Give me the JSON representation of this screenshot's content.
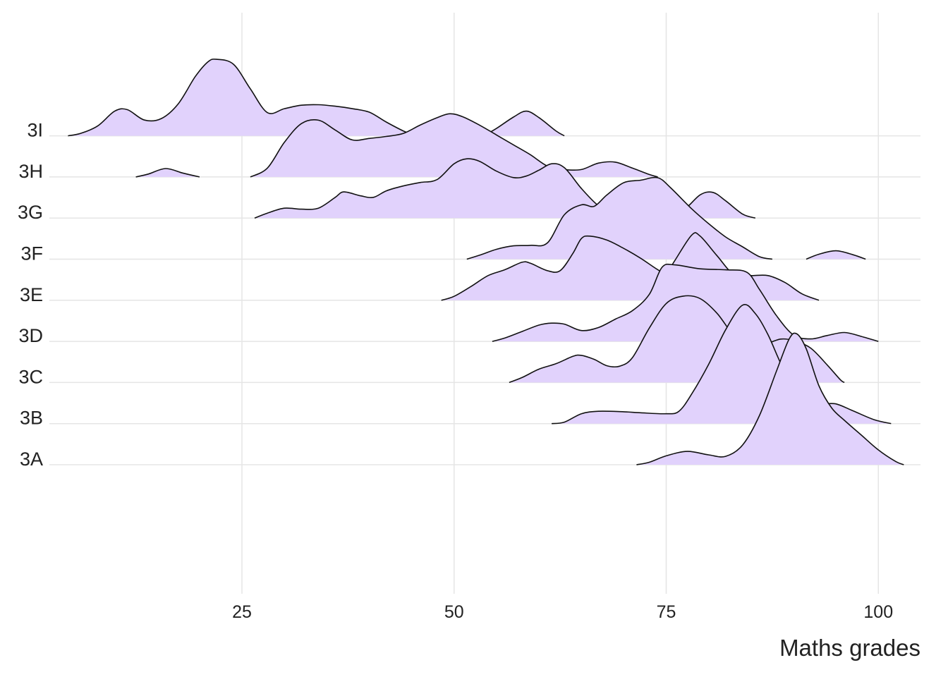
{
  "chart_data": {
    "type": "ridgeline",
    "xlabel": "Maths grades",
    "ylabel": "",
    "xlim": [
      2.5,
      103.5
    ],
    "xticks": [
      25,
      50,
      75,
      100
    ],
    "fill_color": "#e1d2fc",
    "line_color": "#111111",
    "grid": true,
    "categories": [
      "3A",
      "3B",
      "3C",
      "3D",
      "3E",
      "3F",
      "3G",
      "3H",
      "3I"
    ],
    "series": [
      {
        "category": "3A",
        "segments": [
          [
            [
              71.5,
              0
            ],
            [
              73,
              0.05
            ],
            [
              75,
              0.18
            ],
            [
              77.5,
              0.27
            ],
            [
              80,
              0.2
            ],
            [
              82,
              0.17
            ],
            [
              84,
              0.4
            ],
            [
              86,
              1.0
            ],
            [
              88,
              1.9
            ],
            [
              89.5,
              2.55
            ],
            [
              90.4,
              2.65
            ],
            [
              91.5,
              2.35
            ],
            [
              93,
              1.6
            ],
            [
              94.5,
              1.15
            ],
            [
              96,
              0.9
            ],
            [
              98,
              0.6
            ],
            [
              100,
              0.3
            ],
            [
              102,
              0.07
            ],
            [
              103,
              0
            ]
          ]
        ]
      },
      {
        "category": "3B",
        "segments": [
          [
            [
              61.5,
              0
            ],
            [
              63,
              0.03
            ],
            [
              65,
              0.2
            ],
            [
              67,
              0.25
            ],
            [
              70,
              0.24
            ],
            [
              72,
              0.22
            ],
            [
              75,
              0.2
            ],
            [
              76.5,
              0.25
            ],
            [
              78,
              0.6
            ],
            [
              80,
              1.2
            ],
            [
              82,
              1.9
            ],
            [
              84,
              2.4
            ],
            [
              85.5,
              2.23
            ],
            [
              87,
              1.8
            ],
            [
              89,
              1.05
            ],
            [
              91,
              0.65
            ],
            [
              93,
              0.42
            ],
            [
              95,
              0.4
            ],
            [
              97,
              0.26
            ],
            [
              99.5,
              0.08
            ],
            [
              101.5,
              0
            ]
          ]
        ]
      },
      {
        "category": "3C",
        "segments": [
          [
            [
              56.5,
              0
            ],
            [
              58,
              0.1
            ],
            [
              60,
              0.27
            ],
            [
              62,
              0.38
            ],
            [
              64,
              0.53
            ],
            [
              65,
              0.55
            ],
            [
              66.5,
              0.47
            ],
            [
              68,
              0.34
            ],
            [
              69.5,
              0.33
            ],
            [
              71,
              0.5
            ],
            [
              73,
              1.1
            ],
            [
              75,
              1.6
            ],
            [
              77,
              1.75
            ],
            [
              79,
              1.7
            ],
            [
              81,
              1.4
            ],
            [
              83,
              0.95
            ],
            [
              85,
              0.75
            ],
            [
              87,
              0.8
            ],
            [
              88.5,
              0.88
            ],
            [
              90,
              0.85
            ],
            [
              92,
              0.7
            ],
            [
              94,
              0.35
            ],
            [
              95.5,
              0.06
            ],
            [
              96,
              0
            ]
          ]
        ]
      },
      {
        "category": "3D",
        "segments": [
          [
            [
              54.5,
              0
            ],
            [
              56,
              0.07
            ],
            [
              58,
              0.2
            ],
            [
              60,
              0.33
            ],
            [
              61.5,
              0.37
            ],
            [
              63,
              0.35
            ],
            [
              65,
              0.22
            ],
            [
              67,
              0.28
            ],
            [
              69,
              0.45
            ],
            [
              71,
              0.62
            ],
            [
              73,
              0.95
            ],
            [
              74.5,
              1.5
            ],
            [
              76,
              1.55
            ],
            [
              79,
              1.47
            ],
            [
              82,
              1.45
            ],
            [
              84.5,
              1.4
            ],
            [
              86,
              1.05
            ],
            [
              88,
              0.52
            ],
            [
              90,
              0.13
            ],
            [
              92,
              0.05
            ],
            [
              94,
              0.12
            ],
            [
              96,
              0.18
            ],
            [
              98,
              0.1
            ],
            [
              100,
              0
            ]
          ]
        ]
      },
      {
        "category": "3E",
        "segments": [
          [
            [
              48.5,
              0
            ],
            [
              50,
              0.08
            ],
            [
              52,
              0.28
            ],
            [
              54,
              0.5
            ],
            [
              56,
              0.62
            ],
            [
              58,
              0.77
            ],
            [
              59,
              0.75
            ],
            [
              61,
              0.6
            ],
            [
              62.5,
              0.6
            ],
            [
              64,
              0.95
            ],
            [
              65,
              1.25
            ],
            [
              66,
              1.3
            ],
            [
              68,
              1.22
            ],
            [
              70,
              1.05
            ],
            [
              72,
              0.85
            ],
            [
              74,
              0.62
            ],
            [
              75,
              0.55
            ],
            [
              76,
              0.8
            ],
            [
              78,
              1.32
            ],
            [
              79,
              1.3
            ],
            [
              81,
              0.9
            ],
            [
              83,
              0.52
            ],
            [
              85,
              0.5
            ],
            [
              87,
              0.5
            ],
            [
              89,
              0.36
            ],
            [
              91,
              0.13
            ],
            [
              93,
              0
            ]
          ]
        ]
      },
      {
        "category": "3F",
        "segments": [
          [
            [
              51.5,
              0
            ],
            [
              53,
              0.08
            ],
            [
              55,
              0.2
            ],
            [
              57,
              0.27
            ],
            [
              59,
              0.28
            ],
            [
              61,
              0.33
            ],
            [
              63,
              0.9
            ],
            [
              65,
              1.1
            ],
            [
              66.5,
              1.07
            ],
            [
              68,
              1.3
            ],
            [
              70,
              1.55
            ],
            [
              72,
              1.6
            ],
            [
              74,
              1.65
            ],
            [
              75.5,
              1.45
            ],
            [
              78,
              1.02
            ],
            [
              80,
              0.72
            ],
            [
              82,
              0.45
            ],
            [
              84,
              0.25
            ],
            [
              86,
              0.05
            ],
            [
              87.5,
              0
            ]
          ],
          [
            [
              91.5,
              0
            ],
            [
              93,
              0.1
            ],
            [
              95,
              0.17
            ],
            [
              97,
              0.09
            ],
            [
              98.5,
              0
            ]
          ]
        ]
      },
      {
        "category": "3G",
        "segments": [
          [
            [
              26.5,
              0
            ],
            [
              28,
              0.1
            ],
            [
              30,
              0.2
            ],
            [
              32,
              0.18
            ],
            [
              34,
              0.2
            ],
            [
              36,
              0.42
            ],
            [
              37,
              0.53
            ],
            [
              39,
              0.45
            ],
            [
              40.5,
              0.42
            ],
            [
              42,
              0.55
            ],
            [
              44,
              0.65
            ],
            [
              46,
              0.72
            ],
            [
              48,
              0.78
            ],
            [
              50,
              1.1
            ],
            [
              51.5,
              1.2
            ],
            [
              53,
              1.15
            ],
            [
              55,
              0.95
            ],
            [
              57,
              0.82
            ],
            [
              58.5,
              0.85
            ],
            [
              60,
              0.97
            ],
            [
              61.5,
              1.1
            ],
            [
              63,
              1.02
            ],
            [
              65,
              0.6
            ],
            [
              67,
              0.25
            ],
            [
              69,
              0.05
            ],
            [
              71,
              0.12
            ],
            [
              73,
              0.22
            ],
            [
              75,
              0.2
            ],
            [
              77,
              0.17
            ],
            [
              79,
              0.47
            ],
            [
              80.5,
              0.52
            ],
            [
              82,
              0.35
            ],
            [
              84,
              0.08
            ],
            [
              85.5,
              0
            ]
          ]
        ]
      },
      {
        "category": "3H",
        "segments": [
          [
            [
              12.5,
              0
            ],
            [
              14,
              0.06
            ],
            [
              16,
              0.17
            ],
            [
              18,
              0.08
            ],
            [
              20,
              0
            ]
          ],
          [
            [
              26,
              0
            ],
            [
              28,
              0.18
            ],
            [
              30,
              0.7
            ],
            [
              32,
              1.08
            ],
            [
              34,
              1.15
            ],
            [
              36,
              0.95
            ],
            [
              38,
              0.75
            ],
            [
              40,
              0.78
            ],
            [
              42,
              0.82
            ],
            [
              44,
              0.88
            ],
            [
              46,
              1.05
            ],
            [
              48,
              1.2
            ],
            [
              49.5,
              1.28
            ],
            [
              51,
              1.22
            ],
            [
              53,
              1.05
            ],
            [
              55,
              0.85
            ],
            [
              57,
              0.65
            ],
            [
              59,
              0.45
            ],
            [
              61,
              0.22
            ],
            [
              63,
              0.15
            ],
            [
              65,
              0.15
            ],
            [
              67,
              0.28
            ],
            [
              69,
              0.3
            ],
            [
              71,
              0.18
            ],
            [
              73,
              0.05
            ],
            [
              74,
              0
            ]
          ]
        ]
      },
      {
        "category": "3I",
        "segments": [
          [
            [
              4.5,
              0
            ],
            [
              6,
              0.05
            ],
            [
              8,
              0.2
            ],
            [
              10,
              0.5
            ],
            [
              11.5,
              0.53
            ],
            [
              13.5,
              0.32
            ],
            [
              15.5,
              0.35
            ],
            [
              17.5,
              0.65
            ],
            [
              19.5,
              1.2
            ],
            [
              21,
              1.5
            ],
            [
              22,
              1.55
            ],
            [
              24,
              1.45
            ],
            [
              26,
              0.95
            ],
            [
              28,
              0.47
            ],
            [
              30,
              0.55
            ],
            [
              32,
              0.62
            ],
            [
              34,
              0.63
            ],
            [
              36,
              0.6
            ],
            [
              38,
              0.55
            ],
            [
              40,
              0.48
            ],
            [
              42,
              0.28
            ],
            [
              44,
              0.1
            ],
            [
              45.5,
              0
            ]
          ],
          [
            [
              53.5,
              0
            ],
            [
              55,
              0.15
            ],
            [
              57,
              0.38
            ],
            [
              58.5,
              0.5
            ],
            [
              60,
              0.37
            ],
            [
              62,
              0.1
            ],
            [
              63,
              0
            ]
          ]
        ]
      }
    ]
  }
}
